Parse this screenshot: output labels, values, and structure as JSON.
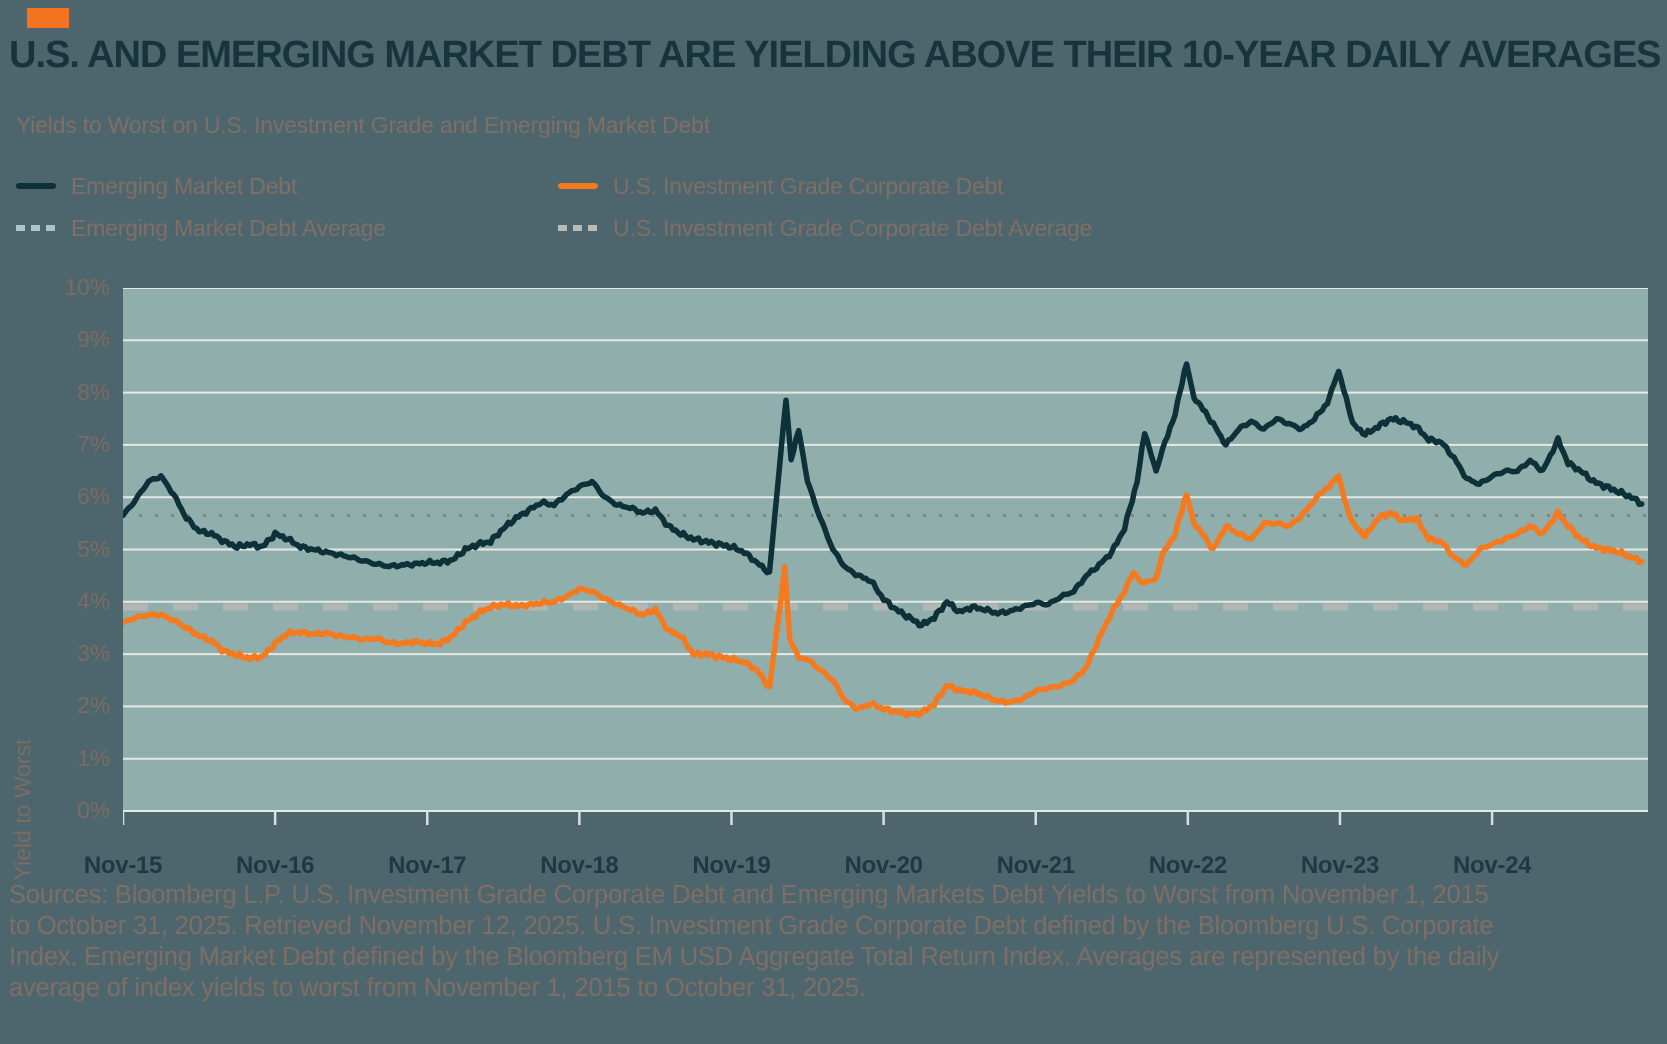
{
  "accent_color": "#f4731f",
  "title": "U.S. AND EMERGING MARKET DEBT ARE YIELDING ABOVE THEIR 10-YEAR DAILY AVERAGES",
  "subtitle": "Yields to Worst on U.S. Investment Grade and Emerging Market Debt",
  "legend": [
    {
      "label": "Emerging Market Debt",
      "color": "#0e3139",
      "dashed": false
    },
    {
      "label": "U.S. Investment Grade Corporate Debt",
      "color": "#f47a1f",
      "dashed": false
    },
    {
      "label": "Emerging Market Debt Average",
      "color": "#a8c6c2",
      "dashed": true
    },
    {
      "label": "U.S. Investment Grade Corporate Debt Average",
      "color": "#b9bbb6",
      "dashed": true
    }
  ],
  "source_lines": {
    "line1": "Sources: Bloomberg L.P. U.S. Investment Grade Corporate Debt and Emerging Markets Debt Yields to Worst from November 1, 2015",
    "line2": "to October 31, 2025. Retrieved November 12, 2025. U.S. Investment Grade Corporate Debt defined by the Bloomberg U.S. Corporate",
    "line3": "Index. Emerging Market Debt defined by the Bloomberg EM USD Aggregate Total Return Index. Averages are represented by the daily",
    "line4": "average of index yields to worst from November 1, 2015 to October 31, 2025."
  },
  "chart_data": {
    "type": "line",
    "title": "Yields to Worst on U.S. Investment Grade and Emerging Market Debt",
    "ylabel": "Yield to Worst",
    "xlabel": "",
    "ylim": [
      0,
      10
    ],
    "y_ticks": [
      "0%",
      "1%",
      "2%",
      "3%",
      "4%",
      "5%",
      "6%",
      "7%",
      "8%",
      "9%",
      "10%"
    ],
    "x_ticks": [
      "Nov-15",
      "Nov-16",
      "Nov-17",
      "Nov-18",
      "Nov-19",
      "Nov-20",
      "Nov-21",
      "Nov-22",
      "Nov-23",
      "Nov-24"
    ],
    "x_tick_months": [
      0,
      12,
      24,
      36,
      48,
      60,
      72,
      84,
      96,
      108
    ],
    "x_domain_months": [
      0,
      120.3
    ],
    "grid": true,
    "legend_position": "top-left",
    "plot_bg": "#90aeac",
    "grid_color": "#e6e8e3",
    "tick_color": "#d9e0db",
    "series": [
      {
        "name": "Emerging Market Debt",
        "color": "#0e3139",
        "unit": "percent yield, x = months since Nov-2015",
        "points": [
          [
            0,
            5.65
          ],
          [
            1,
            5.95
          ],
          [
            2,
            6.3
          ],
          [
            3,
            6.4
          ],
          [
            4,
            6.05
          ],
          [
            5,
            5.6
          ],
          [
            6,
            5.35
          ],
          [
            7,
            5.3
          ],
          [
            8,
            5.15
          ],
          [
            9,
            5.05
          ],
          [
            10,
            5.1
          ],
          [
            11,
            5.05
          ],
          [
            12,
            5.3
          ],
          [
            13,
            5.2
          ],
          [
            14,
            5.05
          ],
          [
            15,
            5.0
          ],
          [
            16,
            4.95
          ],
          [
            17,
            4.9
          ],
          [
            18,
            4.85
          ],
          [
            19,
            4.78
          ],
          [
            20,
            4.72
          ],
          [
            21,
            4.68
          ],
          [
            22,
            4.7
          ],
          [
            23,
            4.72
          ],
          [
            24,
            4.75
          ],
          [
            25,
            4.75
          ],
          [
            26,
            4.8
          ],
          [
            27,
            5.0
          ],
          [
            28,
            5.1
          ],
          [
            29,
            5.15
          ],
          [
            30,
            5.4
          ],
          [
            31,
            5.6
          ],
          [
            32,
            5.75
          ],
          [
            33,
            5.9
          ],
          [
            34,
            5.85
          ],
          [
            35,
            6.05
          ],
          [
            36,
            6.2
          ],
          [
            37,
            6.3
          ],
          [
            38,
            6.0
          ],
          [
            39,
            5.85
          ],
          [
            40,
            5.8
          ],
          [
            41,
            5.7
          ],
          [
            42,
            5.75
          ],
          [
            43,
            5.45
          ],
          [
            44,
            5.3
          ],
          [
            45,
            5.2
          ],
          [
            46,
            5.15
          ],
          [
            47,
            5.1
          ],
          [
            48,
            5.05
          ],
          [
            49,
            4.95
          ],
          [
            50,
            4.75
          ],
          [
            51,
            4.55
          ],
          [
            52.3,
            7.9
          ],
          [
            52.7,
            6.7
          ],
          [
            53.3,
            7.3
          ],
          [
            54,
            6.3
          ],
          [
            55,
            5.6
          ],
          [
            56,
            5.0
          ],
          [
            57,
            4.65
          ],
          [
            58,
            4.5
          ],
          [
            59,
            4.4
          ],
          [
            60,
            4.05
          ],
          [
            61,
            3.85
          ],
          [
            62,
            3.7
          ],
          [
            63,
            3.55
          ],
          [
            64,
            3.7
          ],
          [
            65,
            4.0
          ],
          [
            66,
            3.8
          ],
          [
            67,
            3.9
          ],
          [
            68,
            3.85
          ],
          [
            69,
            3.78
          ],
          [
            70,
            3.82
          ],
          [
            71,
            3.9
          ],
          [
            72,
            3.98
          ],
          [
            73,
            3.95
          ],
          [
            74,
            4.1
          ],
          [
            75,
            4.2
          ],
          [
            76,
            4.5
          ],
          [
            77,
            4.7
          ],
          [
            78,
            4.95
          ],
          [
            79,
            5.4
          ],
          [
            80,
            6.3
          ],
          [
            80.6,
            7.25
          ],
          [
            81.5,
            6.5
          ],
          [
            82,
            6.9
          ],
          [
            83,
            7.6
          ],
          [
            83.9,
            8.55
          ],
          [
            84.5,
            7.9
          ],
          [
            85,
            7.75
          ],
          [
            86,
            7.4
          ],
          [
            87,
            7.0
          ],
          [
            88,
            7.3
          ],
          [
            89,
            7.45
          ],
          [
            90,
            7.3
          ],
          [
            91,
            7.5
          ],
          [
            92,
            7.4
          ],
          [
            93,
            7.3
          ],
          [
            94,
            7.5
          ],
          [
            95,
            7.8
          ],
          [
            95.9,
            8.4
          ],
          [
            96.5,
            7.9
          ],
          [
            97,
            7.4
          ],
          [
            98,
            7.2
          ],
          [
            99,
            7.35
          ],
          [
            100,
            7.5
          ],
          [
            101,
            7.45
          ],
          [
            102,
            7.35
          ],
          [
            103,
            7.1
          ],
          [
            104,
            7.05
          ],
          [
            105,
            6.75
          ],
          [
            106,
            6.35
          ],
          [
            107,
            6.25
          ],
          [
            108,
            6.4
          ],
          [
            109,
            6.5
          ],
          [
            110,
            6.5
          ],
          [
            111,
            6.7
          ],
          [
            112,
            6.5
          ],
          [
            113.2,
            7.1
          ],
          [
            114,
            6.65
          ],
          [
            115,
            6.5
          ],
          [
            116,
            6.3
          ],
          [
            117,
            6.2
          ],
          [
            118,
            6.1
          ],
          [
            119,
            6.0
          ],
          [
            119.8,
            5.87
          ]
        ]
      },
      {
        "name": "U.S. Investment Grade Corporate Debt",
        "color": "#f47a1f",
        "unit": "percent yield, x = months since Nov-2015",
        "points": [
          [
            0,
            3.6
          ],
          [
            1,
            3.7
          ],
          [
            2,
            3.75
          ],
          [
            3,
            3.75
          ],
          [
            4,
            3.65
          ],
          [
            5,
            3.5
          ],
          [
            6,
            3.35
          ],
          [
            7,
            3.25
          ],
          [
            8,
            3.05
          ],
          [
            9,
            2.98
          ],
          [
            10,
            2.92
          ],
          [
            11,
            2.95
          ],
          [
            12,
            3.2
          ],
          [
            13,
            3.4
          ],
          [
            14,
            3.42
          ],
          [
            15,
            3.38
          ],
          [
            16,
            3.4
          ],
          [
            17,
            3.35
          ],
          [
            18,
            3.32
          ],
          [
            19,
            3.28
          ],
          [
            20,
            3.3
          ],
          [
            21,
            3.22
          ],
          [
            22,
            3.2
          ],
          [
            23,
            3.24
          ],
          [
            24,
            3.2
          ],
          [
            25,
            3.2
          ],
          [
            26,
            3.35
          ],
          [
            27,
            3.6
          ],
          [
            28,
            3.78
          ],
          [
            29,
            3.9
          ],
          [
            30,
            3.95
          ],
          [
            31,
            3.92
          ],
          [
            32,
            3.94
          ],
          [
            33,
            3.98
          ],
          [
            34,
            4.0
          ],
          [
            35,
            4.1
          ],
          [
            36,
            4.25
          ],
          [
            37,
            4.2
          ],
          [
            38,
            4.06
          ],
          [
            39,
            3.95
          ],
          [
            40,
            3.85
          ],
          [
            41,
            3.75
          ],
          [
            42,
            3.85
          ],
          [
            43,
            3.45
          ],
          [
            44,
            3.35
          ],
          [
            45,
            3.0
          ],
          [
            46,
            3.0
          ],
          [
            47,
            2.95
          ],
          [
            48,
            2.9
          ],
          [
            49,
            2.85
          ],
          [
            50,
            2.7
          ],
          [
            51,
            2.35
          ],
          [
            52.2,
            4.64
          ],
          [
            52.6,
            3.3
          ],
          [
            53.3,
            2.95
          ],
          [
            54,
            2.9
          ],
          [
            55,
            2.7
          ],
          [
            56,
            2.5
          ],
          [
            57,
            2.1
          ],
          [
            58,
            1.95
          ],
          [
            59,
            2.05
          ],
          [
            60,
            1.95
          ],
          [
            61,
            1.9
          ],
          [
            62,
            1.85
          ],
          [
            63,
            1.87
          ],
          [
            64,
            2.05
          ],
          [
            65,
            2.4
          ],
          [
            66,
            2.3
          ],
          [
            67,
            2.28
          ],
          [
            68,
            2.2
          ],
          [
            69,
            2.1
          ],
          [
            70,
            2.08
          ],
          [
            71,
            2.15
          ],
          [
            72,
            2.3
          ],
          [
            73,
            2.35
          ],
          [
            74,
            2.4
          ],
          [
            75,
            2.5
          ],
          [
            76,
            2.75
          ],
          [
            77,
            3.3
          ],
          [
            78,
            3.8
          ],
          [
            79,
            4.2
          ],
          [
            79.7,
            4.55
          ],
          [
            80.5,
            4.35
          ],
          [
            81.5,
            4.45
          ],
          [
            82,
            4.9
          ],
          [
            83,
            5.3
          ],
          [
            83.9,
            6.05
          ],
          [
            84.5,
            5.5
          ],
          [
            85,
            5.35
          ],
          [
            86,
            5.0
          ],
          [
            87,
            5.45
          ],
          [
            88,
            5.3
          ],
          [
            89,
            5.2
          ],
          [
            90,
            5.5
          ],
          [
            91,
            5.5
          ],
          [
            92,
            5.45
          ],
          [
            93,
            5.65
          ],
          [
            94,
            5.95
          ],
          [
            95.9,
            6.4
          ],
          [
            96.5,
            5.85
          ],
          [
            97,
            5.5
          ],
          [
            98,
            5.25
          ],
          [
            99,
            5.6
          ],
          [
            100,
            5.7
          ],
          [
            101,
            5.55
          ],
          [
            102,
            5.6
          ],
          [
            103,
            5.2
          ],
          [
            104,
            5.15
          ],
          [
            105,
            4.85
          ],
          [
            106,
            4.7
          ],
          [
            107,
            5.0
          ],
          [
            108,
            5.1
          ],
          [
            109,
            5.2
          ],
          [
            110,
            5.3
          ],
          [
            111,
            5.45
          ],
          [
            112,
            5.3
          ],
          [
            113.2,
            5.7
          ],
          [
            114,
            5.45
          ],
          [
            115,
            5.2
          ],
          [
            116,
            5.05
          ],
          [
            117,
            5.0
          ],
          [
            118,
            4.95
          ],
          [
            119,
            4.85
          ],
          [
            119.8,
            4.77
          ]
        ]
      },
      {
        "name": "Emerging Market Debt Average",
        "type": "horizontal-average-line",
        "value": 5.65,
        "plot_color": "#8a7e76",
        "dash": "3 13",
        "width": 3
      },
      {
        "name": "U.S. Investment Grade Corporate Debt Average",
        "type": "horizontal-average-line",
        "value": 3.9,
        "plot_color": "#b7b9b4",
        "dash": "25 25",
        "width": 7
      }
    ]
  }
}
